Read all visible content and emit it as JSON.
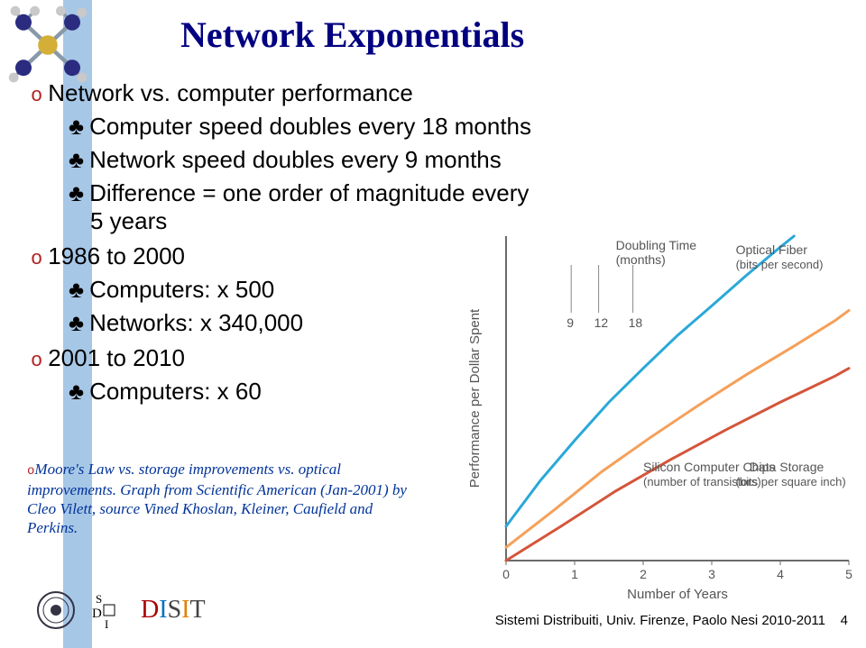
{
  "title": "Network Exponentials",
  "bullets": {
    "b1": "Network vs. computer performance",
    "b1a": "Computer speed doubles every 18 months",
    "b1b": "Network speed doubles every 9 months",
    "b1c": "Difference = one order of magnitude every 5 years",
    "b2": "1986 to 2000",
    "b2a": "Computers: x 500",
    "b2b": "Networks: x 340,000",
    "b3": "2001 to 2010",
    "b3a": "Computers: x 60"
  },
  "caption": "Moore's Law vs. storage improvements vs. optical improvements. Graph from Scientific American (Jan-2001) by Cleo Vilett, source Vined Khoslan, Kleiner, Caufield and Perkins.",
  "chart": {
    "ylabel": "Performance per Dollar Spent",
    "xlabel": "Number of Years",
    "xlim": [
      0,
      5
    ],
    "xticks": [
      "0",
      "1",
      "2",
      "3",
      "4",
      "5"
    ],
    "annotations": {
      "doubling": "Doubling Time\n(months)",
      "ticks": [
        "9",
        "12",
        "18"
      ],
      "fiber": "Optical Fiber\n(bits per second)",
      "chips": "Silicon Computer Chips\n(number of transistors)",
      "storage": "Data Storage\n(bits per square inch)"
    },
    "colors": {
      "fiber": "#2aa8d8",
      "chips": "#f5a05a",
      "storage": "#d4553a",
      "axis": "#6a6a6a",
      "grid": "#bfbfbf",
      "tick_line": "#888888",
      "text": "#555555"
    },
    "line_width": 3,
    "series": {
      "fiber": [
        [
          0,
          8
        ],
        [
          0.5,
          15
        ],
        [
          1,
          26
        ],
        [
          1.5,
          44
        ],
        [
          2,
          70
        ],
        [
          2.5,
          110
        ],
        [
          3,
          165
        ],
        [
          3.5,
          250
        ],
        [
          4,
          370
        ],
        [
          4.2,
          430
        ]
      ],
      "chips": [
        [
          0,
          6
        ],
        [
          0.7,
          10
        ],
        [
          1.4,
          17
        ],
        [
          2.1,
          27
        ],
        [
          2.8,
          42
        ],
        [
          3.5,
          64
        ],
        [
          4.2,
          95
        ],
        [
          4.8,
          135
        ],
        [
          5,
          155
        ]
      ],
      "storage": [
        [
          0,
          5
        ],
        [
          0.8,
          8
        ],
        [
          1.6,
          13
        ],
        [
          2.4,
          20
        ],
        [
          3.2,
          30
        ],
        [
          4.0,
          44
        ],
        [
          4.8,
          63
        ],
        [
          5,
          70
        ]
      ]
    }
  },
  "footer": {
    "text": "Sistemi Distribuiti, Univ. Firenze, Paolo Nesi 2010-2011",
    "page": "4",
    "disit": "DISIT"
  }
}
